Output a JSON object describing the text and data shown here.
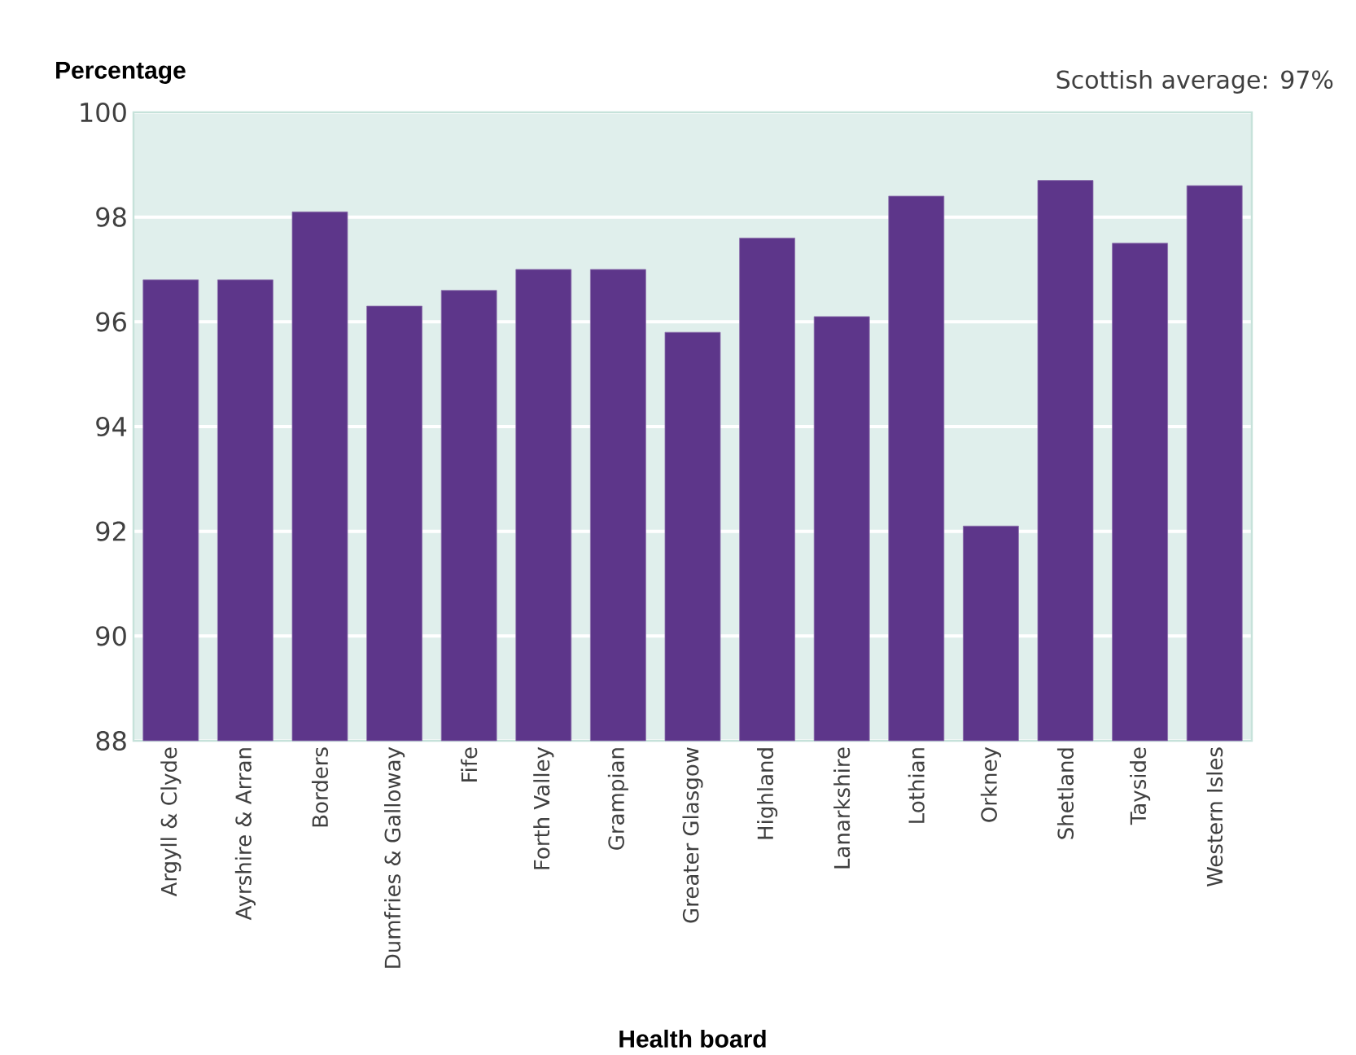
{
  "chart_data": {
    "type": "bar",
    "xlabel": "Health board",
    "ylabel": "Percentage",
    "annotations": [
      "Scottish average: 97%"
    ],
    "categories": [
      "Argyll & Clyde",
      "Ayrshire & Arran",
      "Borders",
      "Dumfries & Galloway",
      "Fife",
      "Forth Valley",
      "Grampian",
      "Greater Glasgow",
      "Highland",
      "Lanarkshire",
      "Lothian",
      "Orkney",
      "Shetland",
      "Tayside",
      "Western Isles"
    ],
    "values": [
      96.8,
      96.8,
      98.1,
      96.3,
      96.6,
      97.0,
      97.0,
      95.8,
      97.6,
      96.1,
      98.4,
      92.1,
      98.7,
      97.5,
      98.6
    ],
    "color": "#5d368a",
    "ylim": [
      88,
      100
    ],
    "yticks": [
      88,
      90,
      92,
      94,
      96,
      98,
      100
    ],
    "grid": "y"
  }
}
